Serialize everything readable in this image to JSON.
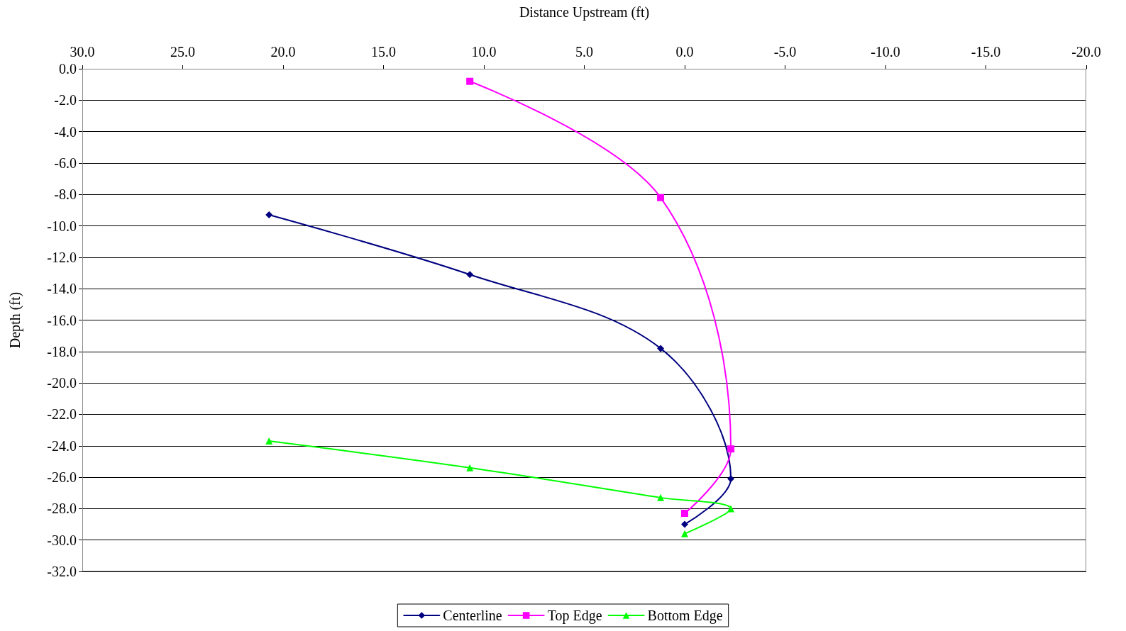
{
  "chart_data": {
    "type": "line",
    "xlabel": "Distance Upstream (ft)",
    "ylabel": "Depth (ft)",
    "xlim": [
      30,
      -20
    ],
    "xticks": [
      {
        "value": 30,
        "label": "30.0"
      },
      {
        "value": 25,
        "label": "25.0"
      },
      {
        "value": 20,
        "label": "20.0"
      },
      {
        "value": 15,
        "label": "15.0"
      },
      {
        "value": 10,
        "label": "10.0"
      },
      {
        "value": 5,
        "label": "5.0"
      },
      {
        "value": 0,
        "label": "0.0"
      },
      {
        "value": -5,
        "label": "-5.0"
      },
      {
        "value": -10,
        "label": "-10.0"
      },
      {
        "value": -15,
        "label": "-15.0"
      },
      {
        "value": -20,
        "label": "-20.0"
      }
    ],
    "ylim": [
      -32,
      0
    ],
    "yticks": [
      {
        "value": 0,
        "label": "0.0"
      },
      {
        "value": -2,
        "label": "-2.0"
      },
      {
        "value": -4,
        "label": "-4.0"
      },
      {
        "value": -6,
        "label": "-6.0"
      },
      {
        "value": -8,
        "label": "-8.0"
      },
      {
        "value": -10,
        "label": "-10.0"
      },
      {
        "value": -12,
        "label": "-12.0"
      },
      {
        "value": -14,
        "label": "-14.0"
      },
      {
        "value": -16,
        "label": "-16.0"
      },
      {
        "value": -18,
        "label": "-18.0"
      },
      {
        "value": -20,
        "label": "-20.0"
      },
      {
        "value": -22,
        "label": "-22.0"
      },
      {
        "value": -24,
        "label": "-24.0"
      },
      {
        "value": -26,
        "label": "-26.0"
      },
      {
        "value": -28,
        "label": "-28.0"
      },
      {
        "value": -30,
        "label": "-30.0"
      },
      {
        "value": -32,
        "label": "-32.0"
      }
    ],
    "grid": "y",
    "legend": "bottom",
    "line_style": "solid",
    "series": [
      {
        "name": "Centerline",
        "color": "#000080",
        "marker": "diamond",
        "x": [
          20.7,
          10.7,
          1.2,
          -2.3,
          0
        ],
        "values": [
          -9.3,
          -13.1,
          -17.8,
          -26.1,
          -29.0
        ]
      },
      {
        "name": "Top Edge",
        "color": "#ff00ff",
        "marker": "square",
        "x": [
          10.7,
          1.2,
          -2.3,
          0
        ],
        "values": [
          -0.8,
          -8.2,
          -24.2,
          -28.3
        ]
      },
      {
        "name": "Bottom Edge",
        "color": "#00ff00",
        "marker": "triangle",
        "x": [
          20.7,
          10.7,
          1.2,
          -2.3,
          0
        ],
        "values": [
          -23.7,
          -25.4,
          -27.3,
          -28.0,
          -29.6
        ]
      }
    ]
  }
}
